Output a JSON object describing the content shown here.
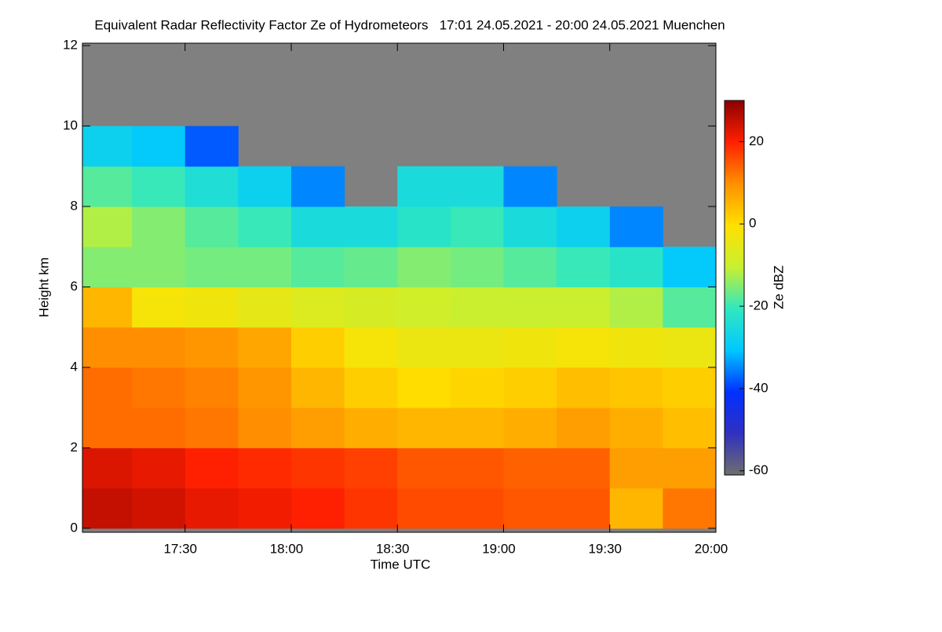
{
  "chart_data": {
    "type": "heatmap",
    "title": "Equivalent Radar Reflectivity Factor Ze of Hydrometeors   17:01 24.05.2021 - 20:00 24.05.2021 Muenchen",
    "x_label": "Time UTC",
    "y_label": "Height km",
    "colorbar_label": "Ze dBZ",
    "x": [
      17.125,
      17.375,
      17.625,
      17.875,
      18.125,
      18.375,
      18.625,
      18.875,
      19.125,
      19.375,
      19.625,
      19.875
    ],
    "y": [
      0.5,
      1.5,
      2.5,
      3.5,
      4.5,
      5.5,
      6.5,
      7.5,
      8.5,
      9.5,
      10.5,
      11.5
    ],
    "z": [
      [
        25,
        24,
        22,
        21,
        20,
        18,
        16,
        16,
        15,
        15,
        5,
        12
      ],
      [
        23,
        22,
        20,
        19,
        18,
        17,
        15,
        15,
        14,
        14,
        8,
        8
      ],
      [
        13,
        13,
        12,
        10,
        8,
        6,
        5,
        5,
        6,
        8,
        6,
        4
      ],
      [
        13,
        12,
        11,
        9,
        5,
        2,
        0,
        1,
        2,
        4,
        3,
        2
      ],
      [
        10,
        10,
        9,
        7,
        2,
        -2,
        -4,
        -4,
        -3,
        -2,
        -3,
        -4
      ],
      [
        5,
        -2,
        -3,
        -5,
        -7,
        -8,
        -9,
        -10,
        -10,
        -10,
        -12,
        -18
      ],
      [
        -15,
        -15,
        -16,
        -16,
        -18,
        -17,
        -15,
        -16,
        -18,
        -20,
        -22,
        -30
      ],
      [
        -12,
        -15,
        -18,
        -20,
        -25,
        -25,
        -22,
        -20,
        -25,
        -28,
        -35,
        null
      ],
      [
        -18,
        -20,
        -24,
        -28,
        -35,
        null,
        -25,
        -25,
        -35,
        null,
        null,
        null
      ],
      [
        -28,
        -30,
        -38,
        null,
        null,
        null,
        null,
        null,
        null,
        null,
        null,
        null
      ],
      [
        null,
        null,
        null,
        null,
        null,
        null,
        null,
        null,
        null,
        null,
        null,
        null
      ],
      [
        null,
        null,
        null,
        null,
        null,
        null,
        null,
        null,
        null,
        null,
        null,
        null
      ]
    ],
    "xlim": [
      17.0167,
      20.0
    ],
    "xticks": [
      {
        "value": 17.5,
        "label": "17:30"
      },
      {
        "value": 18.0,
        "label": "18:00"
      },
      {
        "value": 18.5,
        "label": "18:30"
      },
      {
        "value": 19.0,
        "label": "19:00"
      },
      {
        "value": 19.5,
        "label": "19:30"
      },
      {
        "value": 20.0,
        "label": "20:00"
      }
    ],
    "ylim": [
      -0.1,
      12.06
    ],
    "yticks": [
      0,
      2,
      4,
      6,
      8,
      10,
      12
    ],
    "zlim": [
      -61,
      30
    ],
    "zticks": [
      20,
      0,
      -20,
      -40,
      -60
    ],
    "missing_color": "#808080",
    "colormap": [
      "#6e6e6e",
      "#3030c0",
      "#0030ff",
      "#00c8ff",
      "#30e8c0",
      "#c8f030",
      "#ffe000",
      "#ff9000",
      "#ff2000",
      "#8b0000"
    ]
  }
}
